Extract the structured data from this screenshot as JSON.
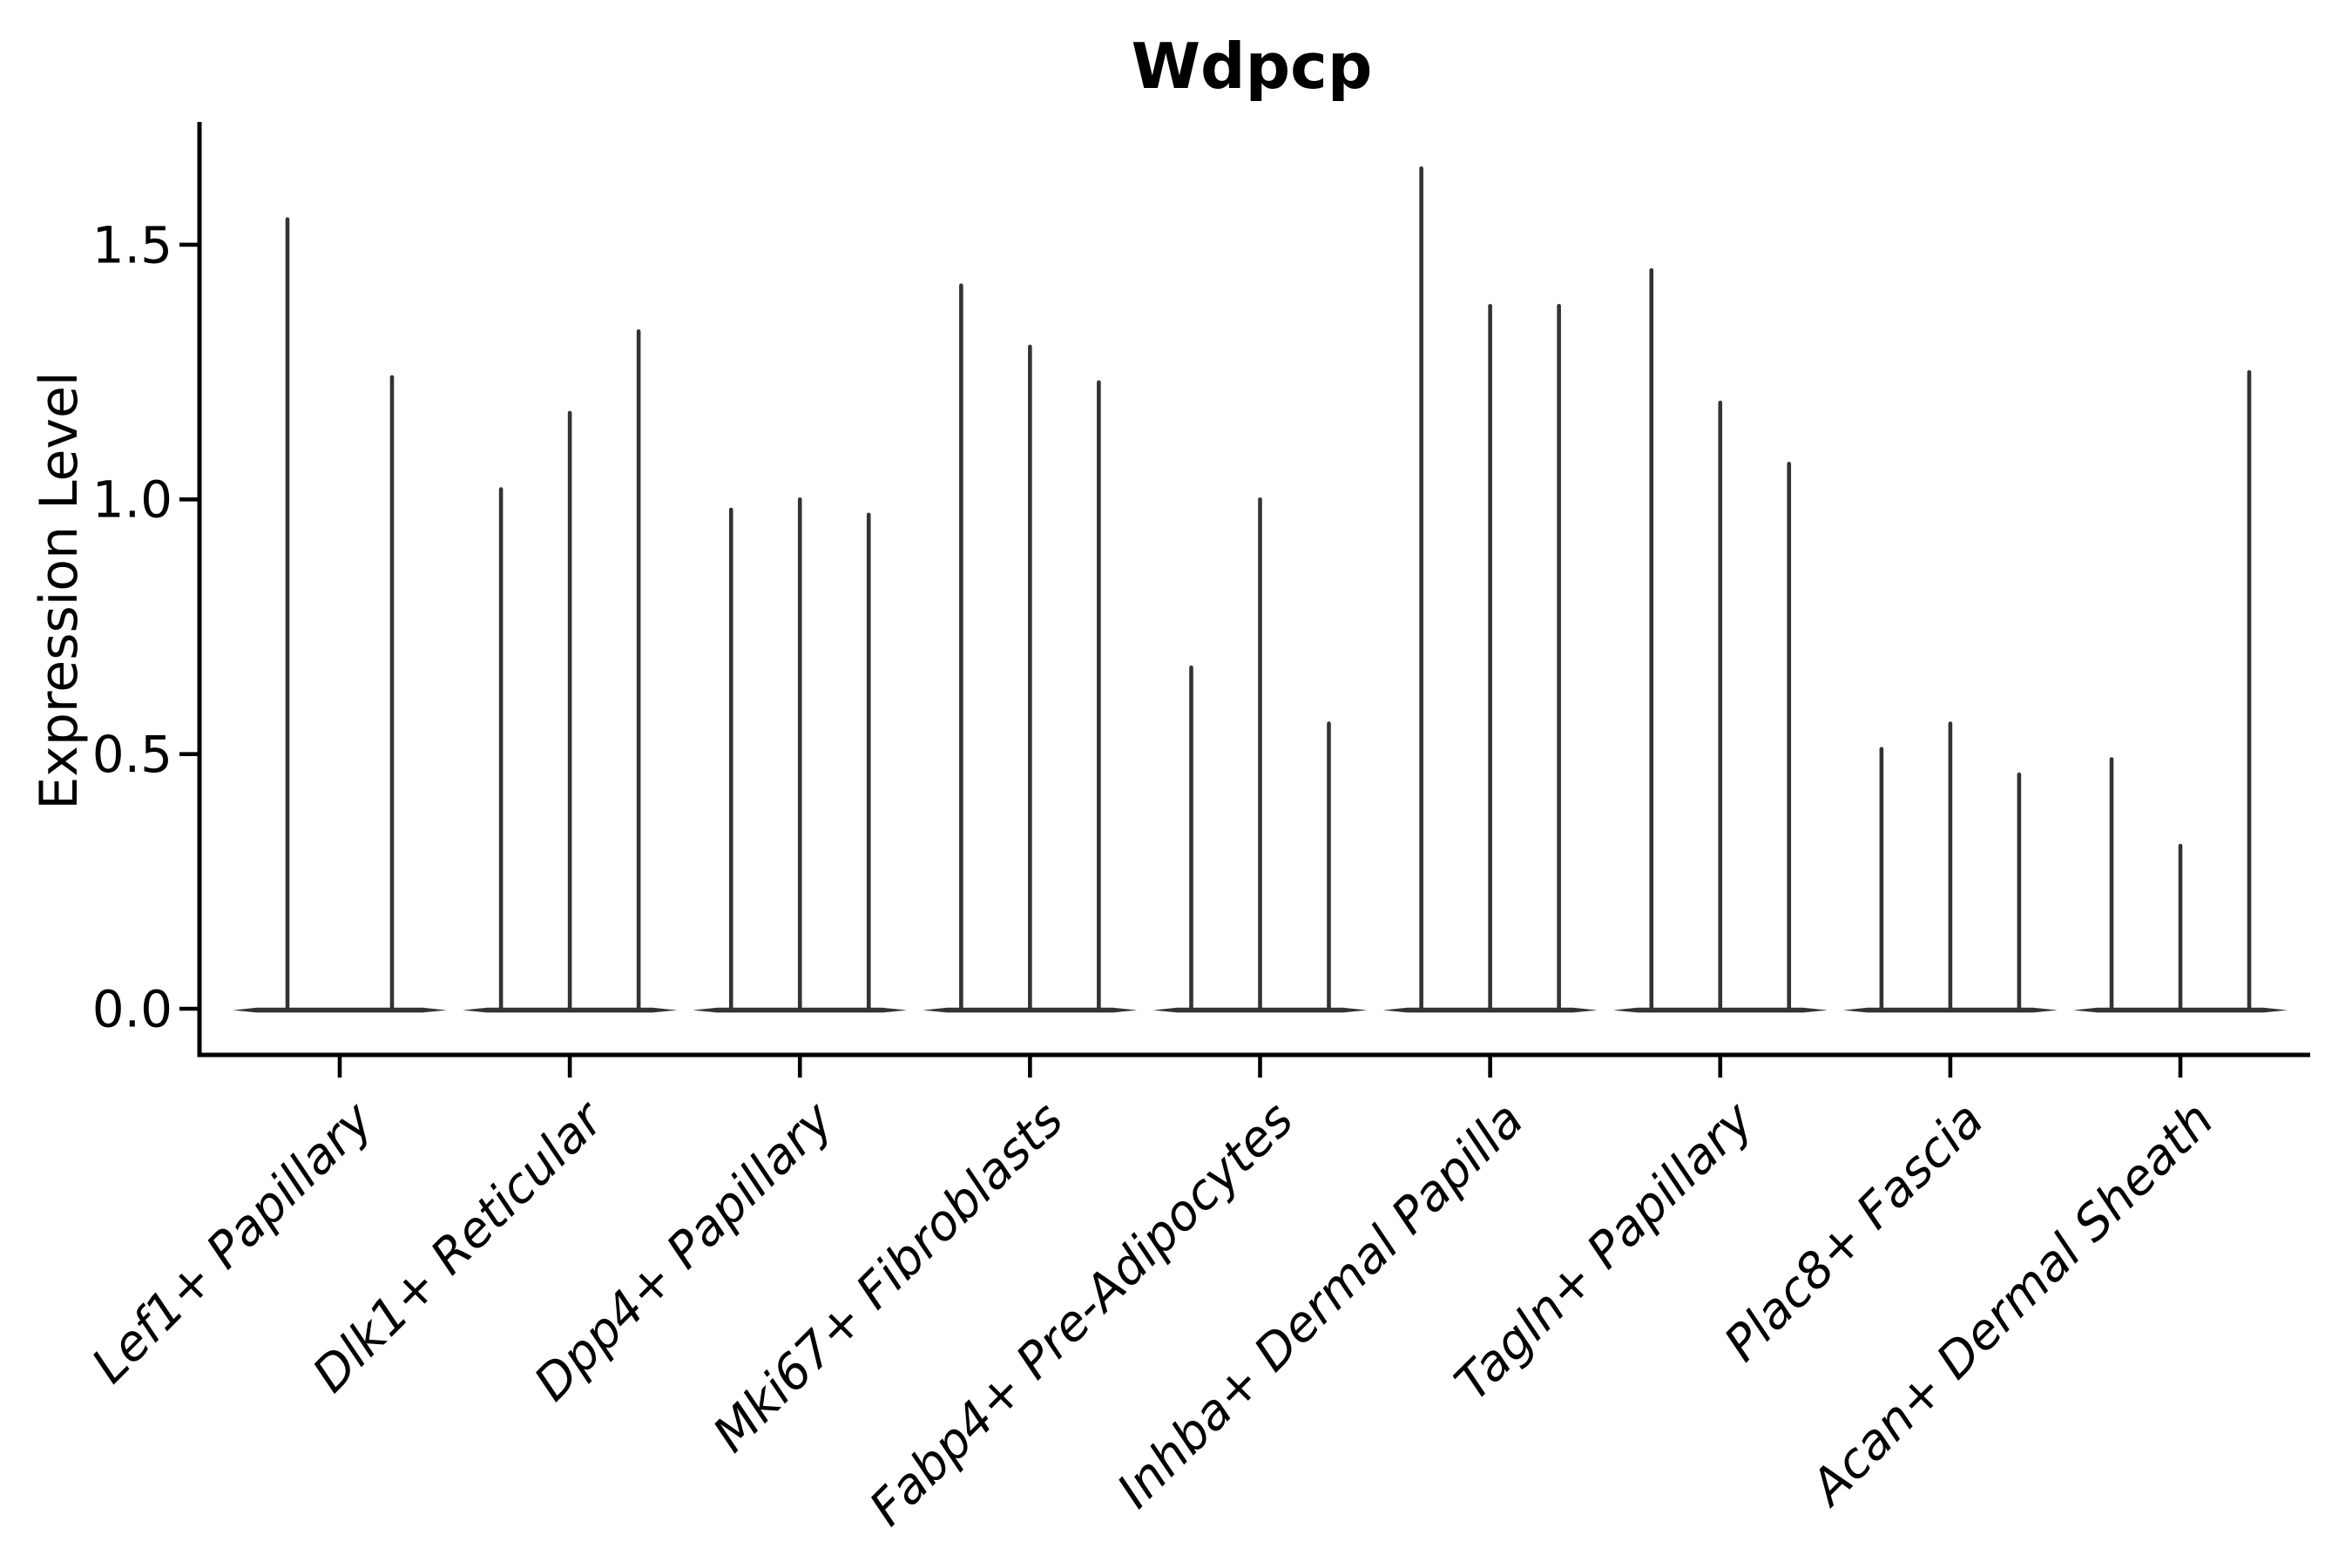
{
  "figure": {
    "title": "Wdpcp",
    "background_color": "#ffffff"
  },
  "chart_data": {
    "type": "violin",
    "title": "Wdpcp",
    "xlabel": "",
    "ylabel": "Expression Level",
    "ylim": [
      -0.09,
      1.74
    ],
    "yticks": [
      0.0,
      0.5,
      1.0,
      1.5
    ],
    "ytick_labels": [
      "0.0",
      "0.5",
      "1.0",
      "1.5"
    ],
    "grid": false,
    "legend": "none",
    "description": "Violin plot of Wdpcp expression level per cell-type cluster. Each cluster contains multiple needle-thin violins: nearly all density sits at expression 0 (flat dark base) with a thin spike rising to the maximum expression value.",
    "categories": [
      "Lef1+ Papillary",
      "Dlk1+ Reticular",
      "Dpp4+ Papillary",
      "Mki67+ Fibroblasts",
      "Fabp4+ Pre-Adipocytes",
      "Inhba+ Dermal Papilla",
      "Tagln+ Papillary",
      "Plac8+ Fascia",
      "Acan+ Dermal Sheath"
    ],
    "violins": [
      {
        "category": "Lef1+ Papillary",
        "spike_maxima": [
          1.55,
          1.24
        ]
      },
      {
        "category": "Dlk1+ Reticular",
        "spike_maxima": [
          1.02,
          1.17,
          1.33
        ]
      },
      {
        "category": "Dpp4+ Papillary",
        "spike_maxima": [
          0.98,
          1.0,
          0.97
        ]
      },
      {
        "category": "Mki67+ Fibroblasts",
        "spike_maxima": [
          1.42,
          1.3,
          1.23
        ]
      },
      {
        "category": "Fabp4+ Pre-Adipocytes",
        "spike_maxima": [
          0.67,
          1.0,
          0.56
        ]
      },
      {
        "category": "Inhba+ Dermal Papilla",
        "spike_maxima": [
          1.65,
          1.38,
          1.38
        ]
      },
      {
        "category": "Tagln+ Papillary",
        "spike_maxima": [
          1.45,
          1.19,
          1.07
        ]
      },
      {
        "category": "Plac8+ Fascia",
        "spike_maxima": [
          0.51,
          0.56,
          0.46
        ]
      },
      {
        "category": "Acan+ Dermal Sheath",
        "spike_maxima": [
          0.49,
          0.32,
          1.25
        ]
      }
    ],
    "colors": {
      "violin": "#333333",
      "axis": "#000000",
      "text": "#000000"
    }
  }
}
